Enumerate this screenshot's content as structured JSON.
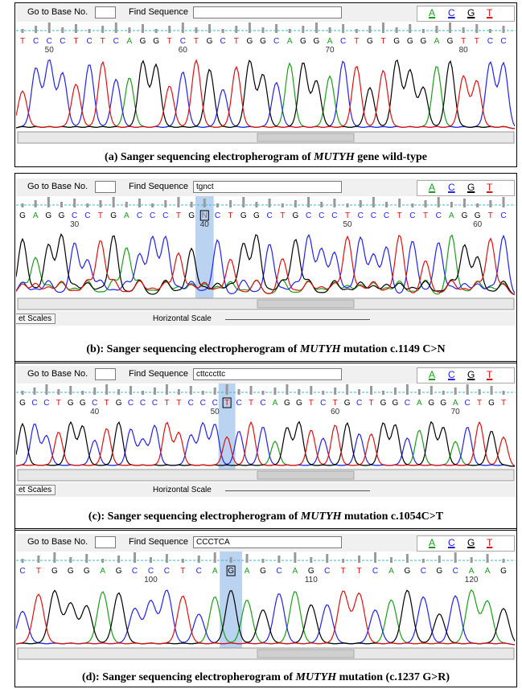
{
  "toolbar": {
    "goto": "Go to Base No.",
    "find": "Find Sequence",
    "bases": [
      "A",
      "C",
      "G",
      "T"
    ]
  },
  "panels": [
    {
      "bases": [
        "T",
        "C",
        "C",
        "C",
        "T",
        "C",
        "T",
        "C",
        "A",
        "G",
        "G",
        "T",
        "C",
        "T",
        "G",
        "C",
        "T",
        "G",
        "G",
        "C",
        "A",
        "G",
        "G",
        "A",
        "C",
        "T",
        "G",
        "T",
        "G",
        "G",
        "G",
        "A",
        "G",
        "T",
        "T",
        "C",
        "C"
      ],
      "positions": [
        50,
        60,
        70,
        80
      ],
      "caption": {
        "prefix": "(a) Sanger sequencing electropherogram of ",
        "gene": "MUTYH",
        "suffix": " gene wild-type"
      }
    },
    {
      "find_sequence": "tgnct",
      "bases": [
        "G",
        "A",
        "G",
        "G",
        "C",
        "C",
        "T",
        "G",
        "A",
        "C",
        "C",
        "C",
        "T",
        "G",
        "N",
        "C",
        "T",
        "G",
        "G",
        "C",
        "T",
        "G",
        "C",
        "C",
        "C",
        "T",
        "C",
        "C",
        "C",
        "T",
        "C",
        "T",
        "C",
        "A",
        "G",
        "G",
        "T",
        "C"
      ],
      "highlight": 14,
      "positions": [
        30,
        40,
        50,
        60
      ],
      "controls": [
        "et Scales",
        "Horizontal Scale"
      ],
      "caption": {
        "prefix": "(b): Sanger sequencing electropherogram of ",
        "gene": "MUTYH",
        "suffix": " mutation c.1149 C>N"
      }
    },
    {
      "find_sequence": "cttcccttc",
      "bases": [
        "G",
        "C",
        "C",
        "T",
        "G",
        "G",
        "C",
        "T",
        "G",
        "C",
        "C",
        "C",
        "T",
        "T",
        "C",
        "C",
        "C",
        "T",
        "C",
        "T",
        "C",
        "A",
        "G",
        "G",
        "T",
        "C",
        "T",
        "G",
        "C",
        "T",
        "G",
        "G",
        "C",
        "A",
        "G",
        "G",
        "A",
        "C",
        "T",
        "G",
        "T"
      ],
      "highlight": 17,
      "positions": [
        40,
        50,
        60,
        70
      ],
      "controls": [
        "et Scales",
        "Horizontal Scale"
      ],
      "caption": {
        "prefix": "(c): Sanger sequencing electropherogram of ",
        "gene": "MUTYH",
        "suffix": " mutation c.1054C>T"
      }
    },
    {
      "find_sequence": "CCCTCA",
      "bases": [
        "C",
        "T",
        "G",
        "G",
        "G",
        "A",
        "G",
        "C",
        "C",
        "C",
        "T",
        "C",
        "A",
        "G",
        "A",
        "G",
        "C",
        "A",
        "G",
        "C",
        "T",
        "T",
        "C",
        "A",
        "G",
        "C",
        "G",
        "C",
        "A",
        "A",
        "G"
      ],
      "highlight": 13,
      "positions": [
        100,
        110,
        120
      ],
      "caption": {
        "prefix": "(d): Sanger sequencing electropherogram of ",
        "gene": "MUTYH",
        "suffix": " mutation (c.1237 G>R)"
      }
    }
  ]
}
